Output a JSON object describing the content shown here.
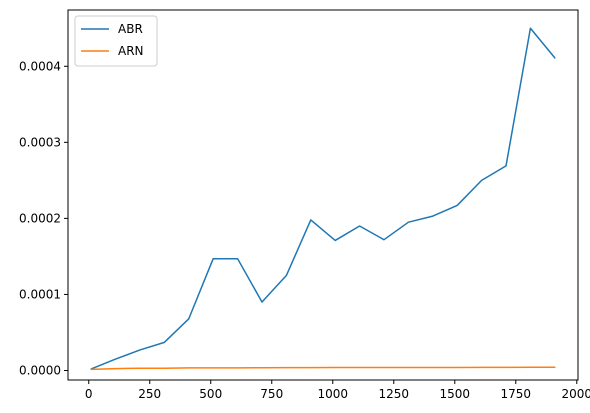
{
  "chart_data": {
    "type": "line",
    "title": "",
    "xlabel": "",
    "ylabel": "",
    "xlim": [
      -85,
      2005
    ],
    "ylim": [
      -1.25e-05,
      0.000474
    ],
    "x_ticks": [
      0,
      250,
      500,
      750,
      1000,
      1250,
      1500,
      1750,
      2000
    ],
    "x_tick_labels": [
      "0",
      "250",
      "500",
      "750",
      "1000",
      "1250",
      "1500",
      "1750",
      "2000"
    ],
    "y_ticks": [
      0,
      0.0001,
      0.0002,
      0.0003,
      0.0004
    ],
    "y_tick_labels": [
      "0.0000",
      "0.0001",
      "0.0002",
      "0.0003",
      "0.0004"
    ],
    "grid": false,
    "legend_position": "top-left",
    "x": [
      10,
      110,
      210,
      310,
      410,
      510,
      610,
      710,
      810,
      910,
      1010,
      1110,
      1210,
      1310,
      1410,
      1510,
      1610,
      1710,
      1810,
      1910
    ],
    "series": [
      {
        "name": "ABR",
        "color": "#1f77b4",
        "values": [
          2e-06,
          1.5e-05,
          2.7e-05,
          3.7e-05,
          6.8e-05,
          0.000147,
          0.000147,
          9e-05,
          0.000125,
          0.000198,
          0.000171,
          0.00019,
          0.000172,
          0.000195,
          0.000203,
          0.000217,
          0.00025,
          0.000269,
          0.00045,
          0.000411
        ]
      },
      {
        "name": "ARN",
        "color": "#ff7f0e",
        "values": [
          1.5e-06,
          2.5e-06,
          3e-06,
          3e-06,
          3.5e-06,
          3.5e-06,
          3.5e-06,
          3.6e-06,
          3.7e-06,
          3.8e-06,
          3.9e-06,
          3.9e-06,
          4e-06,
          4e-06,
          4e-06,
          4e-06,
          4.1e-06,
          4.1e-06,
          4.2e-06,
          4.3e-06
        ]
      }
    ]
  }
}
